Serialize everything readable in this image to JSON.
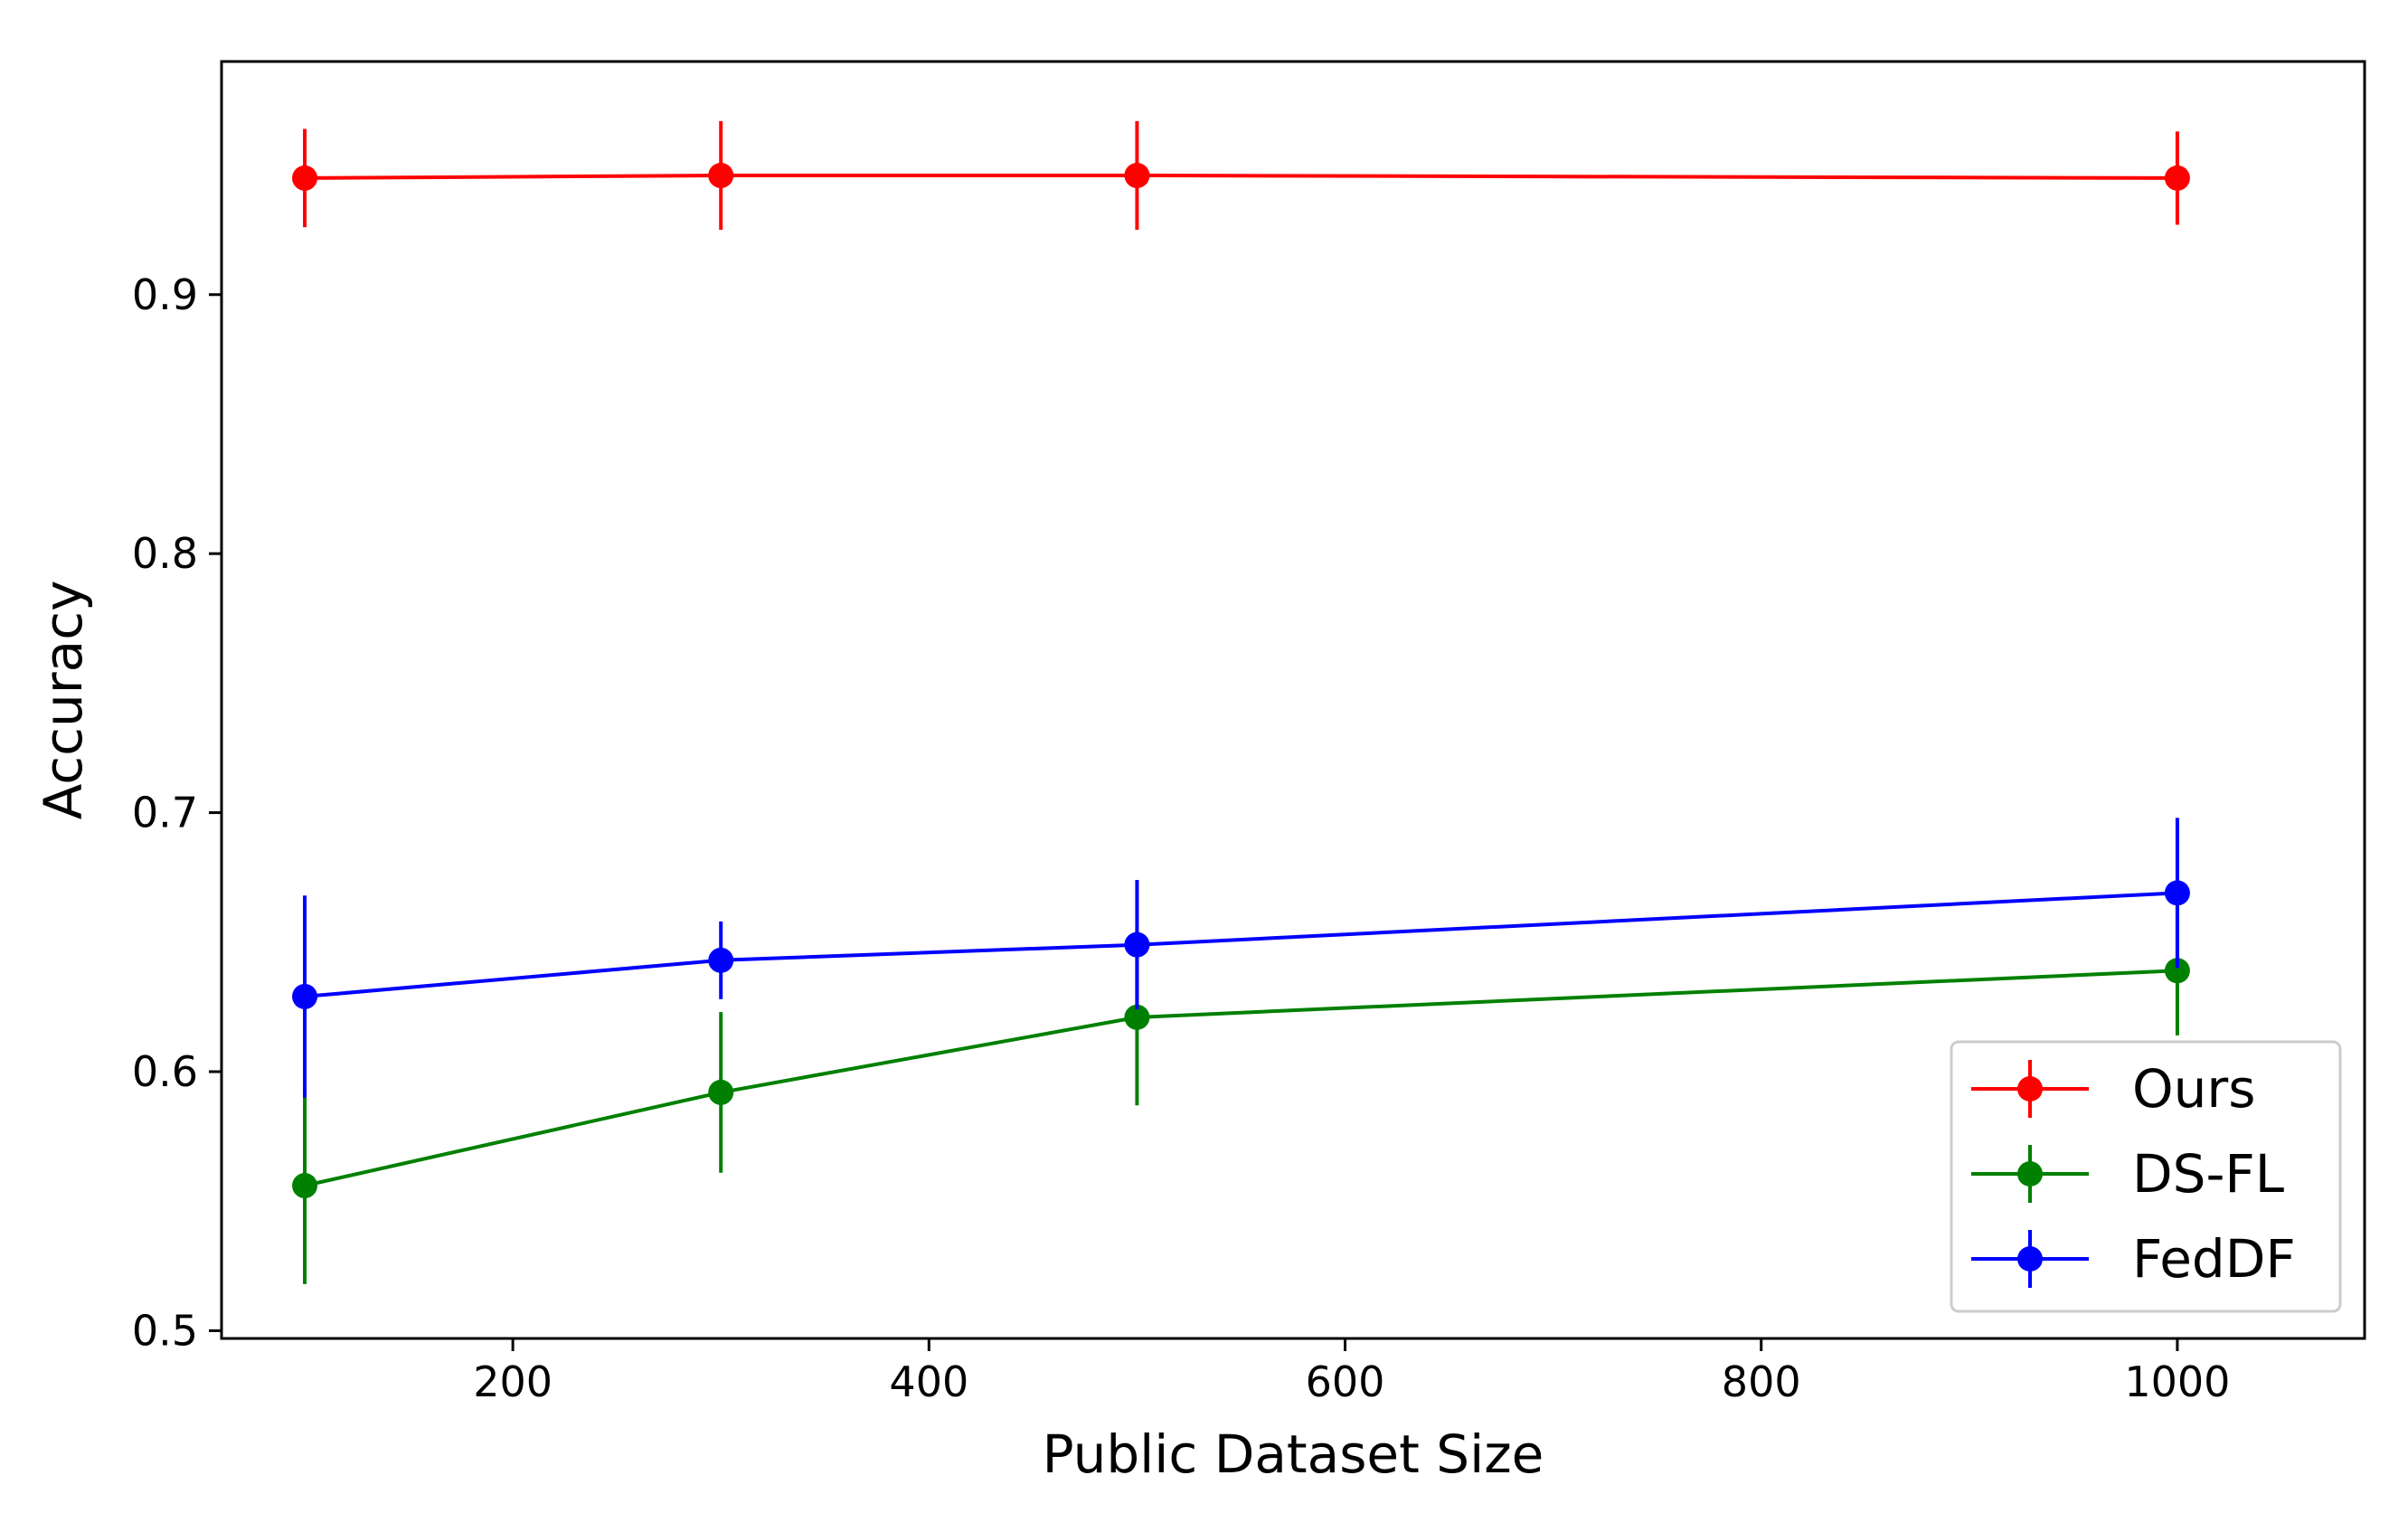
{
  "chart_data": {
    "type": "line",
    "title": "",
    "xlabel": "Public Dataset Size",
    "ylabel": "Accuracy",
    "xlim": [
      60,
      1090
    ],
    "ylim": [
      0.497,
      0.99
    ],
    "xticks": [
      200,
      400,
      600,
      800,
      1000
    ],
    "yticks": [
      0.5,
      0.6,
      0.7,
      0.8,
      0.9
    ],
    "x": [
      100,
      300,
      500,
      1000
    ],
    "grid": false,
    "legend_position": "lower-right",
    "error_bars": true,
    "series": [
      {
        "name": "Ours",
        "color": "#ff0000",
        "values": [
          0.945,
          0.946,
          0.946,
          0.945
        ],
        "errors": [
          0.019,
          0.021,
          0.021,
          0.018
        ]
      },
      {
        "name": "DS-FL",
        "color": "#008000",
        "values": [
          0.556,
          0.592,
          0.621,
          0.639
        ],
        "errors": [
          0.038,
          0.031,
          0.034,
          0.025
        ]
      },
      {
        "name": "FedDF",
        "color": "#0000ff",
        "values": [
          0.629,
          0.643,
          0.649,
          0.669
        ],
        "errors": [
          0.039,
          0.015,
          0.025,
          0.029
        ]
      }
    ]
  }
}
